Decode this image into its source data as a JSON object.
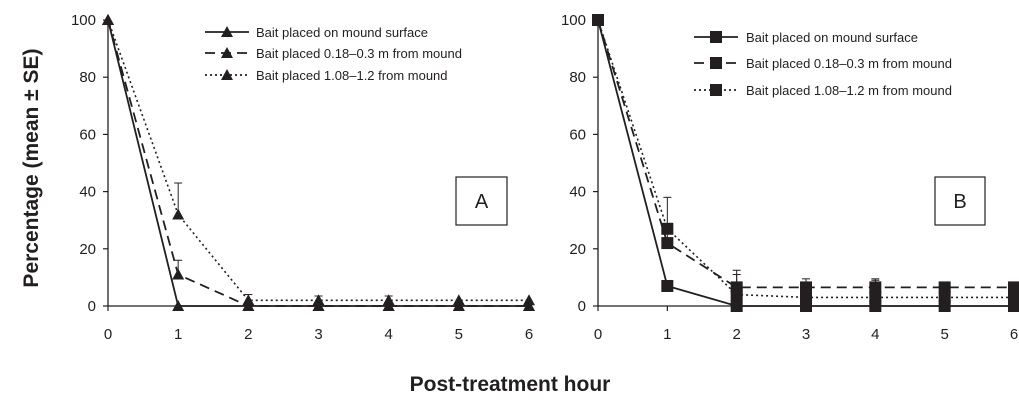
{
  "figure": {
    "ylabel": "Percentage (mean ± SE)",
    "xlabel": "Post-treatment hour"
  },
  "chart_data": [
    {
      "type": "line",
      "panel_label": "A",
      "marker": "triangle",
      "x": [
        0,
        1,
        2,
        3,
        4,
        5,
        6
      ],
      "xticks": [
        "0",
        "1",
        "2",
        "3",
        "4",
        "5",
        "6"
      ],
      "yticks": [
        "0",
        "20",
        "40",
        "60",
        "80",
        "100"
      ],
      "xlim": [
        0,
        6
      ],
      "ylim": [
        0,
        100
      ],
      "legend_position": "top-right",
      "series": [
        {
          "name": "Bait placed on mound surface",
          "line_style": "solid",
          "values": [
            100,
            0,
            0,
            0,
            0,
            0,
            0
          ],
          "error": [
            0,
            0,
            0,
            0,
            0,
            0,
            0
          ]
        },
        {
          "name": "Bait placed 0.18–0.3 m from mound",
          "line_style": "dashed",
          "values": [
            100,
            11,
            0,
            0,
            0,
            0,
            0
          ],
          "error": [
            0,
            5,
            0,
            0,
            0,
            0,
            0
          ]
        },
        {
          "name": "Bait placed 1.08–1.2 from mound",
          "line_style": "dotted",
          "values": [
            100,
            32,
            2,
            2,
            2,
            2,
            2
          ],
          "error": [
            0,
            11,
            2,
            1.5,
            1.5,
            0,
            0
          ]
        }
      ]
    },
    {
      "type": "line",
      "panel_label": "B",
      "marker": "square",
      "x": [
        0,
        1,
        2,
        3,
        4,
        5,
        6
      ],
      "xticks": [
        "0",
        "1",
        "2",
        "3",
        "4",
        "5",
        "6"
      ],
      "yticks": [
        "0",
        "20",
        "40",
        "60",
        "80",
        "100"
      ],
      "xlim": [
        0,
        6
      ],
      "ylim": [
        0,
        100
      ],
      "legend_position": "top-right",
      "series": [
        {
          "name": "Bait placed on mound surface",
          "line_style": "solid",
          "values": [
            100,
            7,
            0,
            0,
            0,
            0,
            0
          ],
          "error": [
            0,
            0,
            0,
            0,
            0,
            0,
            0
          ]
        },
        {
          "name": "Bait placed 0.18–0.3 m from mound",
          "line_style": "dashed",
          "values": [
            100,
            22,
            6.5,
            6.5,
            6.5,
            6.5,
            6.5
          ],
          "error": [
            0,
            6,
            6,
            3,
            3,
            0,
            0
          ]
        },
        {
          "name": "Bait placed 1.08–1.2 m from mound",
          "line_style": "dotted",
          "values": [
            100,
            27,
            4,
            3,
            3,
            3,
            3
          ],
          "error": [
            0,
            11,
            7,
            2,
            6,
            0,
            0
          ]
        }
      ]
    }
  ]
}
